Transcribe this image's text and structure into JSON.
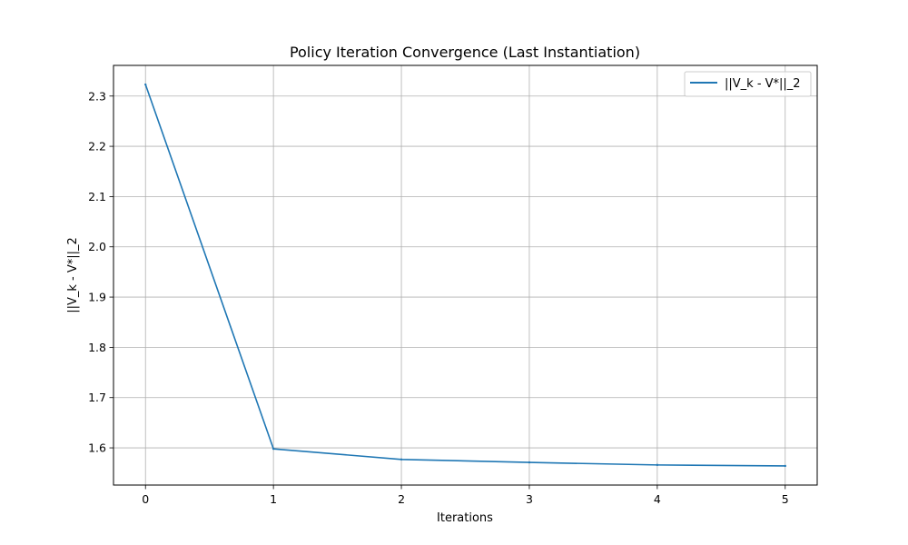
{
  "chart_data": {
    "type": "line",
    "title": "Policy Iteration Convergence (Last Instantiation)",
    "xlabel": "Iterations",
    "ylabel": "||V_k - V*||_2",
    "x": [
      0,
      1,
      2,
      3,
      4,
      5
    ],
    "series": [
      {
        "name": "||V_k - V*||_2",
        "color": "#1f77b4",
        "values": [
          2.323,
          1.598,
          1.577,
          1.571,
          1.566,
          1.564
        ]
      }
    ],
    "xticks": [
      "0",
      "1",
      "2",
      "3",
      "4",
      "5"
    ],
    "yticks": [
      "1.6",
      "1.7",
      "1.8",
      "1.9",
      "2.0",
      "2.1",
      "2.2",
      "2.3"
    ],
    "xlim": [
      -0.25,
      5.25
    ],
    "ylim": [
      1.526,
      2.361
    ],
    "grid": true,
    "legend_position": "top-right"
  }
}
